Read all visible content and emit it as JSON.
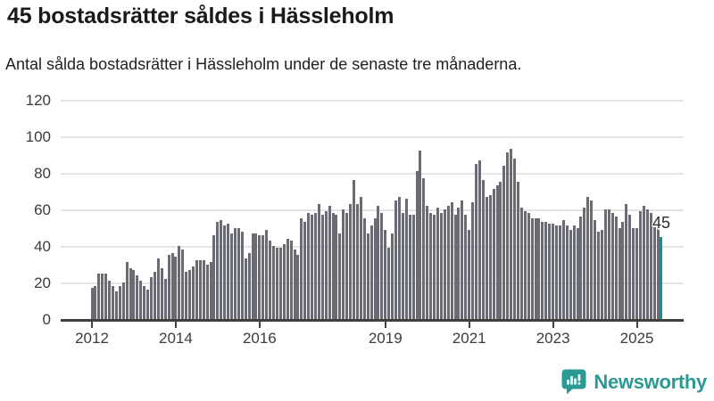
{
  "header": {
    "title": "45 bostadsrätter såldes i Hässleholm",
    "subtitle": "Antal sålda bostadsrätter i Hässleholm under de senaste tre månaderna."
  },
  "chart_data": {
    "type": "bar",
    "title": "45 bostadsrätter såldes i Hässleholm",
    "subtitle": "Antal sålda bostadsrätter i Hässleholm under de senaste tre månaderna.",
    "frequency": "monthly",
    "x_start": "2012-01",
    "x_end": "2025-08",
    "values": [
      17,
      18,
      25,
      25,
      25,
      21,
      18,
      15,
      18,
      20,
      31,
      28,
      27,
      24,
      21,
      18,
      16,
      23,
      26,
      33,
      28,
      22,
      35,
      36,
      34,
      40,
      38,
      26,
      27,
      29,
      32,
      32,
      32,
      30,
      31,
      46,
      53,
      54,
      51,
      52,
      47,
      50,
      50,
      48,
      33,
      36,
      47,
      47,
      46,
      46,
      49,
      43,
      40,
      39,
      39,
      41,
      44,
      43,
      38,
      35,
      55,
      53,
      58,
      57,
      58,
      63,
      57,
      59,
      62,
      58,
      57,
      47,
      60,
      58,
      63,
      76,
      63,
      67,
      55,
      47,
      51,
      55,
      62,
      58,
      49,
      39,
      47,
      65,
      67,
      58,
      66,
      57,
      57,
      81,
      92,
      77,
      62,
      58,
      57,
      61,
      58,
      60,
      62,
      64,
      57,
      61,
      65,
      57,
      49,
      64,
      85,
      87,
      76,
      67,
      68,
      71,
      73,
      75,
      84,
      91,
      93,
      88,
      75,
      61,
      59,
      58,
      55,
      55,
      55,
      53,
      53,
      52,
      52,
      51,
      51,
      54,
      51,
      49,
      51,
      50,
      56,
      61,
      67,
      65,
      54,
      48,
      49,
      60,
      60,
      58,
      56,
      50,
      53,
      63,
      57,
      50,
      50,
      59,
      62,
      60,
      58,
      52,
      51,
      45
    ],
    "highlight": {
      "index": 163,
      "value": 45,
      "label": "45",
      "color": "#009a9a"
    },
    "bar_color": "#6b6b73",
    "ylim": [
      0,
      120
    ],
    "yticks": [
      0,
      20,
      40,
      60,
      80,
      100,
      120
    ],
    "xtick_years": [
      2012,
      2014,
      2016,
      2019,
      2021,
      2023,
      2025
    ],
    "grid": "horizontal",
    "legend": "none",
    "annotation": "45"
  },
  "branding": {
    "logo_text": "Newsworthy",
    "logo_color": "#2b9a92",
    "logo_icon": "bar-chart-speech-bubble-icon"
  },
  "colors": {
    "background": "#ffffff",
    "bar": "#6b6b73",
    "highlight": "#009a9a",
    "gridline": "#e4e4e4",
    "axis": "#404040",
    "text": "#1a1a1a"
  }
}
